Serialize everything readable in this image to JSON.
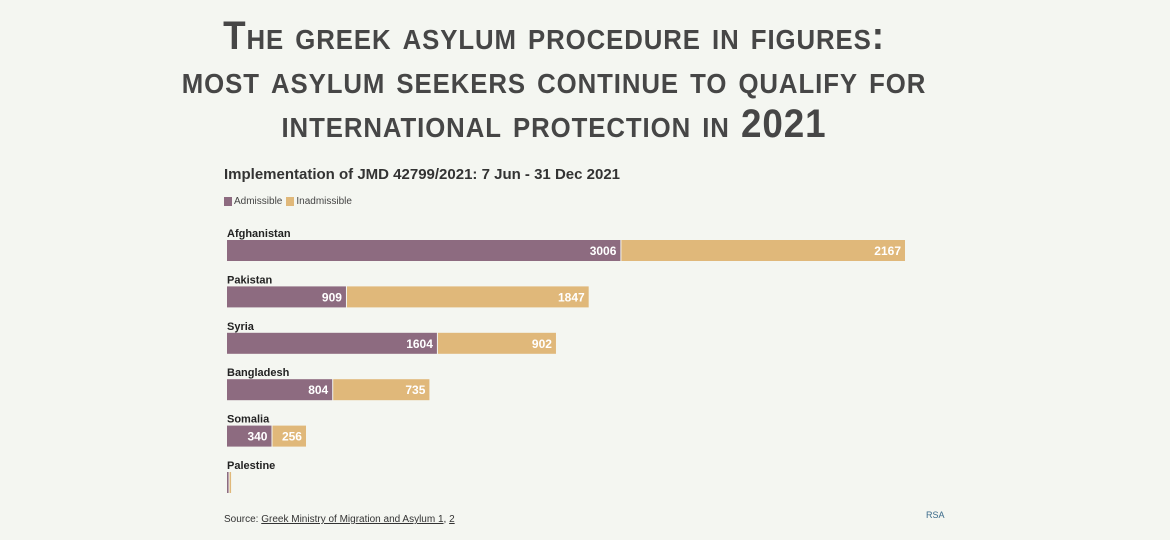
{
  "title_lines": [
    "The greek asylum procedure in figures:",
    "most asylum seekers continue to qualify for",
    "international protection in 2021"
  ],
  "chart_data": {
    "type": "bar",
    "stacked": true,
    "orientation": "horizontal",
    "title": "Implementation of JMD 42799/2021: 7 Jun - 31 Dec 2021",
    "categories": [
      "Afghanistan",
      "Pakistan",
      "Syria",
      "Bangladesh",
      "Somalia",
      "Palestine"
    ],
    "series": [
      {
        "name": "Admissible",
        "color": "#8d6b80",
        "values": [
          3006,
          909,
          1604,
          804,
          340,
          12
        ]
      },
      {
        "name": "Inadmissible",
        "color": "#e0b87a",
        "values": [
          2167,
          1847,
          902,
          735,
          256,
          8
        ]
      }
    ],
    "legend": "top-left",
    "xlim": [
      0,
      5173
    ]
  },
  "source": {
    "label": "Source:",
    "link1": "Greek Ministry of Migration and Asylum 1",
    "sep": ", ",
    "link2": "2"
  },
  "logo": "RSA"
}
